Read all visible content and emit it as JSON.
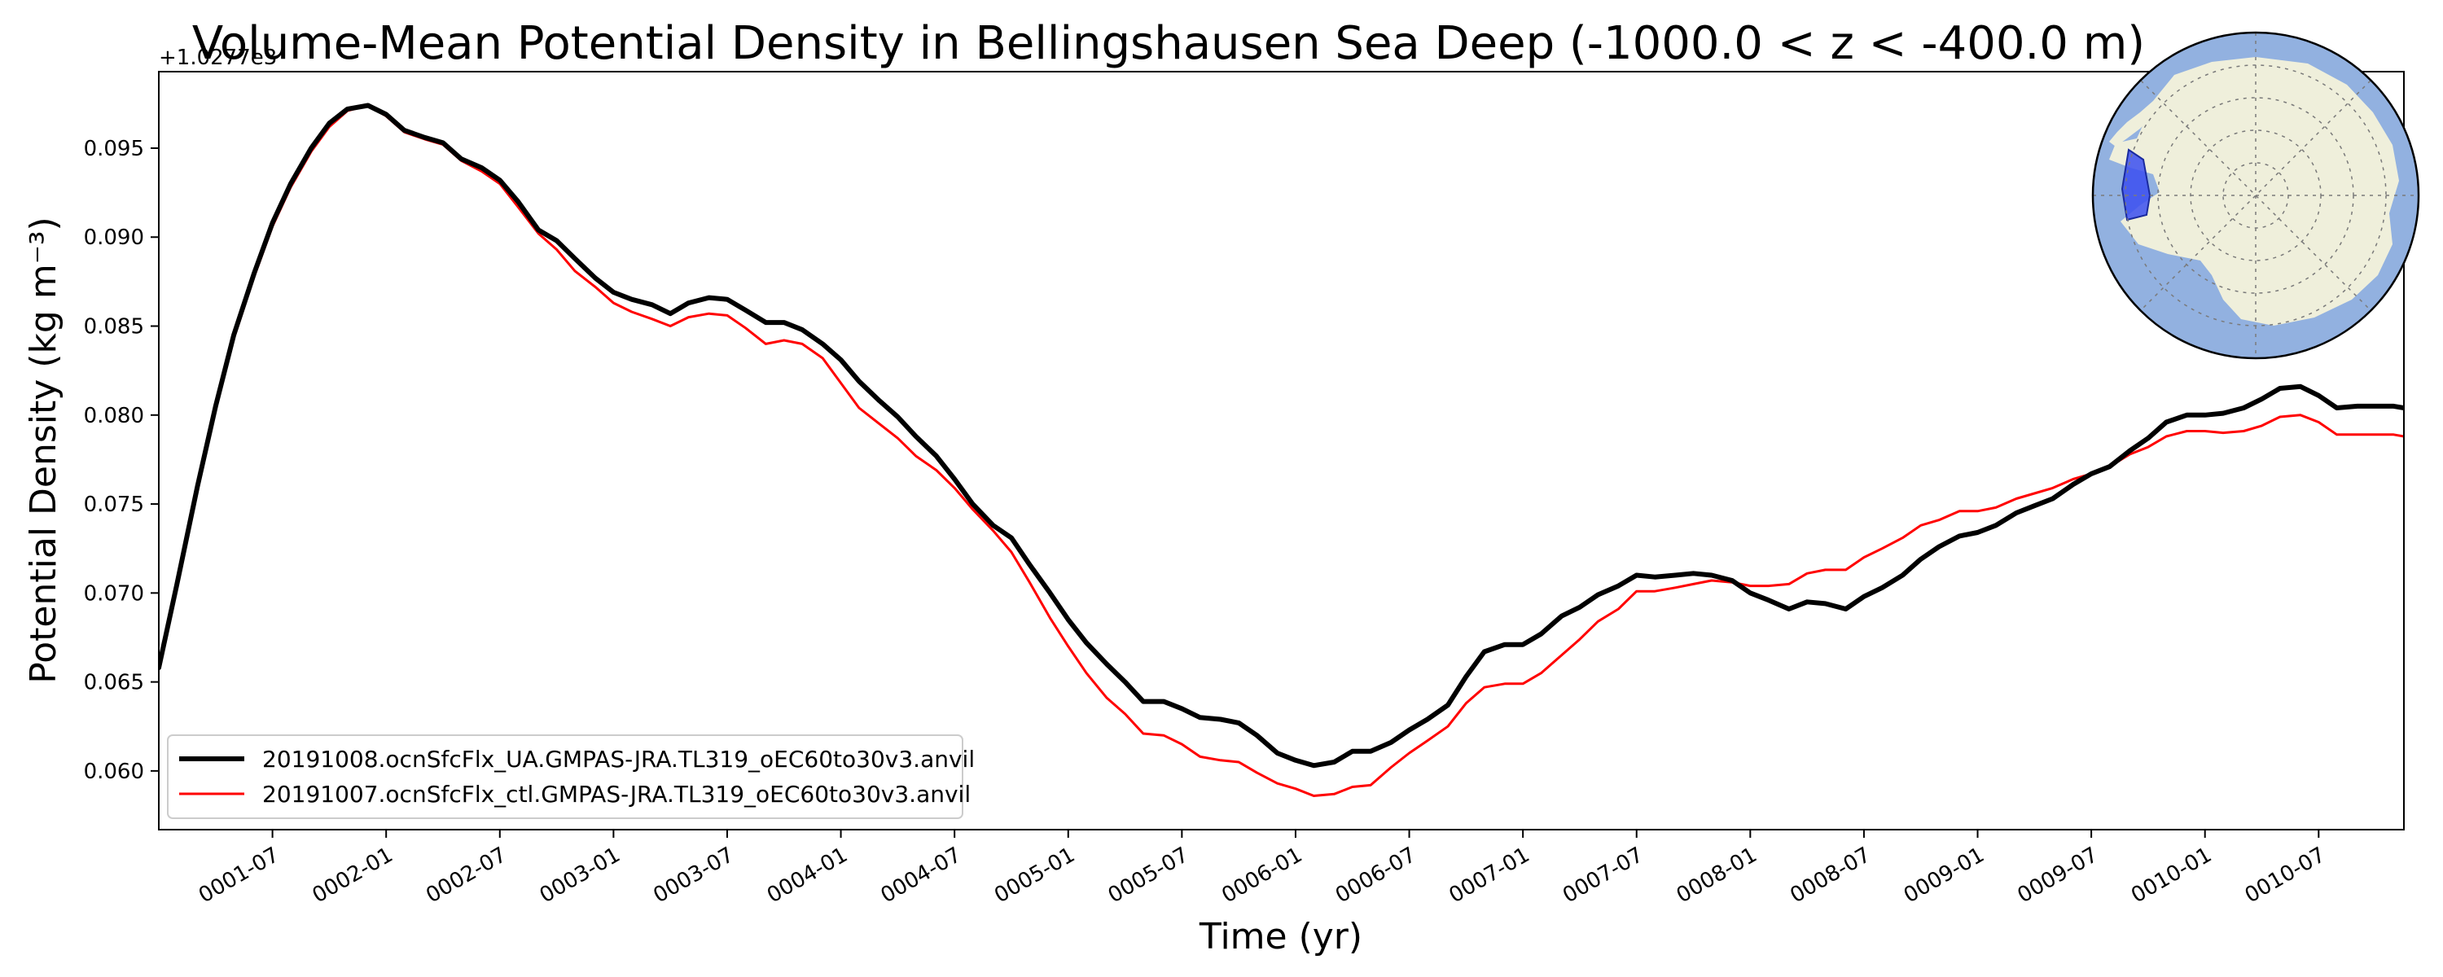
{
  "chart_data": {
    "type": "line",
    "title": "Volume-Mean Potential Density in Bellingshausen Sea Deep (-1000.0 < z < -400.0 m)",
    "xlabel": "Time (yr)",
    "ylabel": "Potential Density (kg m⁻³)",
    "y_offset_label": "+1.0277e3",
    "xlim": [
      1.0,
      10.875
    ],
    "ylim": [
      0.0567,
      0.0993
    ],
    "x_ticks": [
      {
        "value": 1.5,
        "label": "0001-07"
      },
      {
        "value": 2.0,
        "label": "0002-01"
      },
      {
        "value": 2.5,
        "label": "0002-07"
      },
      {
        "value": 3.0,
        "label": "0003-01"
      },
      {
        "value": 3.5,
        "label": "0003-07"
      },
      {
        "value": 4.0,
        "label": "0004-01"
      },
      {
        "value": 4.5,
        "label": "0004-07"
      },
      {
        "value": 5.0,
        "label": "0005-01"
      },
      {
        "value": 5.5,
        "label": "0005-07"
      },
      {
        "value": 6.0,
        "label": "0006-01"
      },
      {
        "value": 6.5,
        "label": "0006-07"
      },
      {
        "value": 7.0,
        "label": "0007-01"
      },
      {
        "value": 7.5,
        "label": "0007-07"
      },
      {
        "value": 8.0,
        "label": "0008-01"
      },
      {
        "value": 8.5,
        "label": "0008-07"
      },
      {
        "value": 9.0,
        "label": "0009-01"
      },
      {
        "value": 9.5,
        "label": "0009-07"
      },
      {
        "value": 10.0,
        "label": "0010-01"
      },
      {
        "value": 10.5,
        "label": "0010-07"
      }
    ],
    "y_ticks": [
      {
        "value": 0.06,
        "label": "0.060"
      },
      {
        "value": 0.065,
        "label": "0.065"
      },
      {
        "value": 0.07,
        "label": "0.070"
      },
      {
        "value": 0.075,
        "label": "0.075"
      },
      {
        "value": 0.08,
        "label": "0.080"
      },
      {
        "value": 0.085,
        "label": "0.085"
      },
      {
        "value": 0.09,
        "label": "0.090"
      },
      {
        "value": 0.095,
        "label": "0.095"
      }
    ],
    "legend_position": "lower-left",
    "series": [
      {
        "name": "20191008.ocnSfcFlx_UA.GMPAS-JRA.TL319_oEC60to30v3.anvil",
        "color": "#000000",
        "points": [
          [
            1.0,
            0.0658
          ],
          [
            1.08,
            0.0705
          ],
          [
            1.17,
            0.076
          ],
          [
            1.25,
            0.0805
          ],
          [
            1.33,
            0.0845
          ],
          [
            1.42,
            0.088
          ],
          [
            1.5,
            0.0908
          ],
          [
            1.58,
            0.093
          ],
          [
            1.67,
            0.095
          ],
          [
            1.75,
            0.0964
          ],
          [
            1.83,
            0.0972
          ],
          [
            1.92,
            0.0974
          ],
          [
            2.0,
            0.0969
          ],
          [
            2.08,
            0.096
          ],
          [
            2.17,
            0.0956
          ],
          [
            2.25,
            0.0953
          ],
          [
            2.33,
            0.0944
          ],
          [
            2.42,
            0.0939
          ],
          [
            2.5,
            0.0932
          ],
          [
            2.58,
            0.092
          ],
          [
            2.67,
            0.0904
          ],
          [
            2.75,
            0.0898
          ],
          [
            2.83,
            0.0888
          ],
          [
            2.92,
            0.0877
          ],
          [
            3.0,
            0.0869
          ],
          [
            3.08,
            0.0865
          ],
          [
            3.17,
            0.0862
          ],
          [
            3.25,
            0.0857
          ],
          [
            3.33,
            0.0863
          ],
          [
            3.42,
            0.0866
          ],
          [
            3.5,
            0.0865
          ],
          [
            3.58,
            0.0859
          ],
          [
            3.67,
            0.0852
          ],
          [
            3.75,
            0.0852
          ],
          [
            3.83,
            0.0848
          ],
          [
            3.92,
            0.084
          ],
          [
            4.0,
            0.0831
          ],
          [
            4.08,
            0.0819
          ],
          [
            4.17,
            0.0808
          ],
          [
            4.25,
            0.0799
          ],
          [
            4.33,
            0.0788
          ],
          [
            4.42,
            0.0777
          ],
          [
            4.5,
            0.0764
          ],
          [
            4.58,
            0.075
          ],
          [
            4.67,
            0.0738
          ],
          [
            4.75,
            0.0731
          ],
          [
            4.83,
            0.0716
          ],
          [
            4.92,
            0.07
          ],
          [
            5.0,
            0.0685
          ],
          [
            5.08,
            0.0672
          ],
          [
            5.17,
            0.066
          ],
          [
            5.25,
            0.065
          ],
          [
            5.33,
            0.0639
          ],
          [
            5.42,
            0.0639
          ],
          [
            5.5,
            0.0635
          ],
          [
            5.58,
            0.063
          ],
          [
            5.67,
            0.0629
          ],
          [
            5.75,
            0.0627
          ],
          [
            5.83,
            0.062
          ],
          [
            5.92,
            0.061
          ],
          [
            6.0,
            0.0606
          ],
          [
            6.08,
            0.0603
          ],
          [
            6.17,
            0.0605
          ],
          [
            6.25,
            0.0611
          ],
          [
            6.33,
            0.0611
          ],
          [
            6.42,
            0.0616
          ],
          [
            6.5,
            0.0623
          ],
          [
            6.58,
            0.0629
          ],
          [
            6.67,
            0.0637
          ],
          [
            6.75,
            0.0653
          ],
          [
            6.83,
            0.0667
          ],
          [
            6.92,
            0.0671
          ],
          [
            7.0,
            0.0671
          ],
          [
            7.08,
            0.0677
          ],
          [
            7.17,
            0.0687
          ],
          [
            7.25,
            0.0692
          ],
          [
            7.33,
            0.0699
          ],
          [
            7.42,
            0.0704
          ],
          [
            7.5,
            0.071
          ],
          [
            7.58,
            0.0709
          ],
          [
            7.67,
            0.071
          ],
          [
            7.75,
            0.0711
          ],
          [
            7.83,
            0.071
          ],
          [
            7.92,
            0.0707
          ],
          [
            8.0,
            0.07
          ],
          [
            8.08,
            0.0696
          ],
          [
            8.17,
            0.0691
          ],
          [
            8.25,
            0.0695
          ],
          [
            8.33,
            0.0694
          ],
          [
            8.42,
            0.0691
          ],
          [
            8.5,
            0.0698
          ],
          [
            8.58,
            0.0703
          ],
          [
            8.67,
            0.071
          ],
          [
            8.75,
            0.0719
          ],
          [
            8.83,
            0.0726
          ],
          [
            8.92,
            0.0732
          ],
          [
            9.0,
            0.0734
          ],
          [
            9.08,
            0.0738
          ],
          [
            9.17,
            0.0745
          ],
          [
            9.25,
            0.0749
          ],
          [
            9.33,
            0.0753
          ],
          [
            9.42,
            0.0761
          ],
          [
            9.5,
            0.0767
          ],
          [
            9.58,
            0.0771
          ],
          [
            9.67,
            0.078
          ],
          [
            9.75,
            0.0787
          ],
          [
            9.83,
            0.0796
          ],
          [
            9.92,
            0.08
          ],
          [
            10.0,
            0.08
          ],
          [
            10.08,
            0.0801
          ],
          [
            10.17,
            0.0804
          ],
          [
            10.25,
            0.0809
          ],
          [
            10.33,
            0.0815
          ],
          [
            10.42,
            0.0816
          ],
          [
            10.5,
            0.0811
          ],
          [
            10.58,
            0.0804
          ],
          [
            10.67,
            0.0805
          ],
          [
            10.75,
            0.0805
          ],
          [
            10.83,
            0.0805
          ],
          [
            10.875,
            0.0804
          ]
        ]
      },
      {
        "name": "20191007.ocnSfcFlx_ctl.GMPAS-JRA.TL319_oEC60to30v3.anvil",
        "color": "#ff0000",
        "points": [
          [
            1.0,
            0.0658
          ],
          [
            1.08,
            0.0704
          ],
          [
            1.17,
            0.0758
          ],
          [
            1.25,
            0.0804
          ],
          [
            1.33,
            0.0843
          ],
          [
            1.42,
            0.0878
          ],
          [
            1.5,
            0.0906
          ],
          [
            1.58,
            0.0928
          ],
          [
            1.67,
            0.0948
          ],
          [
            1.75,
            0.0962
          ],
          [
            1.83,
            0.0971
          ],
          [
            1.92,
            0.0974
          ],
          [
            2.0,
            0.0968
          ],
          [
            2.08,
            0.0959
          ],
          [
            2.17,
            0.0955
          ],
          [
            2.25,
            0.0952
          ],
          [
            2.33,
            0.0943
          ],
          [
            2.42,
            0.0937
          ],
          [
            2.5,
            0.093
          ],
          [
            2.58,
            0.0917
          ],
          [
            2.67,
            0.0902
          ],
          [
            2.75,
            0.0893
          ],
          [
            2.83,
            0.0881
          ],
          [
            2.92,
            0.0872
          ],
          [
            3.0,
            0.0863
          ],
          [
            3.08,
            0.0858
          ],
          [
            3.17,
            0.0854
          ],
          [
            3.25,
            0.085
          ],
          [
            3.33,
            0.0855
          ],
          [
            3.42,
            0.0857
          ],
          [
            3.5,
            0.0856
          ],
          [
            3.58,
            0.0849
          ],
          [
            3.67,
            0.084
          ],
          [
            3.75,
            0.0842
          ],
          [
            3.83,
            0.084
          ],
          [
            3.92,
            0.0832
          ],
          [
            4.0,
            0.0818
          ],
          [
            4.08,
            0.0804
          ],
          [
            4.17,
            0.0795
          ],
          [
            4.25,
            0.0787
          ],
          [
            4.33,
            0.0777
          ],
          [
            4.42,
            0.0769
          ],
          [
            4.5,
            0.0759
          ],
          [
            4.58,
            0.0747
          ],
          [
            4.67,
            0.0735
          ],
          [
            4.75,
            0.0723
          ],
          [
            4.83,
            0.0706
          ],
          [
            4.92,
            0.0686
          ],
          [
            5.0,
            0.067
          ],
          [
            5.08,
            0.0655
          ],
          [
            5.17,
            0.0641
          ],
          [
            5.25,
            0.0632
          ],
          [
            5.33,
            0.0621
          ],
          [
            5.42,
            0.062
          ],
          [
            5.5,
            0.0615
          ],
          [
            5.58,
            0.0608
          ],
          [
            5.67,
            0.0606
          ],
          [
            5.75,
            0.0605
          ],
          [
            5.83,
            0.0599
          ],
          [
            5.92,
            0.0593
          ],
          [
            6.0,
            0.059
          ],
          [
            6.08,
            0.0586
          ],
          [
            6.17,
            0.0587
          ],
          [
            6.25,
            0.0591
          ],
          [
            6.33,
            0.0592
          ],
          [
            6.42,
            0.0602
          ],
          [
            6.5,
            0.061
          ],
          [
            6.58,
            0.0617
          ],
          [
            6.67,
            0.0625
          ],
          [
            6.75,
            0.0638
          ],
          [
            6.83,
            0.0647
          ],
          [
            6.92,
            0.0649
          ],
          [
            7.0,
            0.0649
          ],
          [
            7.08,
            0.0655
          ],
          [
            7.17,
            0.0665
          ],
          [
            7.25,
            0.0674
          ],
          [
            7.33,
            0.0684
          ],
          [
            7.42,
            0.0691
          ],
          [
            7.5,
            0.0701
          ],
          [
            7.58,
            0.0701
          ],
          [
            7.67,
            0.0703
          ],
          [
            7.75,
            0.0705
          ],
          [
            7.83,
            0.0707
          ],
          [
            7.92,
            0.0706
          ],
          [
            8.0,
            0.0704
          ],
          [
            8.08,
            0.0704
          ],
          [
            8.17,
            0.0705
          ],
          [
            8.25,
            0.0711
          ],
          [
            8.33,
            0.0713
          ],
          [
            8.42,
            0.0713
          ],
          [
            8.5,
            0.072
          ],
          [
            8.58,
            0.0725
          ],
          [
            8.67,
            0.0731
          ],
          [
            8.75,
            0.0738
          ],
          [
            8.83,
            0.0741
          ],
          [
            8.92,
            0.0746
          ],
          [
            9.0,
            0.0746
          ],
          [
            9.08,
            0.0748
          ],
          [
            9.17,
            0.0753
          ],
          [
            9.25,
            0.0756
          ],
          [
            9.33,
            0.0759
          ],
          [
            9.42,
            0.0764
          ],
          [
            9.5,
            0.0767
          ],
          [
            9.58,
            0.0771
          ],
          [
            9.67,
            0.0778
          ],
          [
            9.75,
            0.0782
          ],
          [
            9.83,
            0.0788
          ],
          [
            9.92,
            0.0791
          ],
          [
            10.0,
            0.0791
          ],
          [
            10.08,
            0.079
          ],
          [
            10.17,
            0.0791
          ],
          [
            10.25,
            0.0794
          ],
          [
            10.33,
            0.0799
          ],
          [
            10.42,
            0.08
          ],
          [
            10.5,
            0.0796
          ],
          [
            10.58,
            0.0789
          ],
          [
            10.67,
            0.0789
          ],
          [
            10.75,
            0.0789
          ],
          [
            10.83,
            0.0789
          ],
          [
            10.875,
            0.0788
          ]
        ]
      }
    ],
    "inset_map": {
      "type": "south-polar-map",
      "ocean_color": "#92b1e0",
      "land_color": "#efefdb",
      "region_color": "#3b4ff0",
      "region": "Bellingshausen Sea"
    }
  }
}
